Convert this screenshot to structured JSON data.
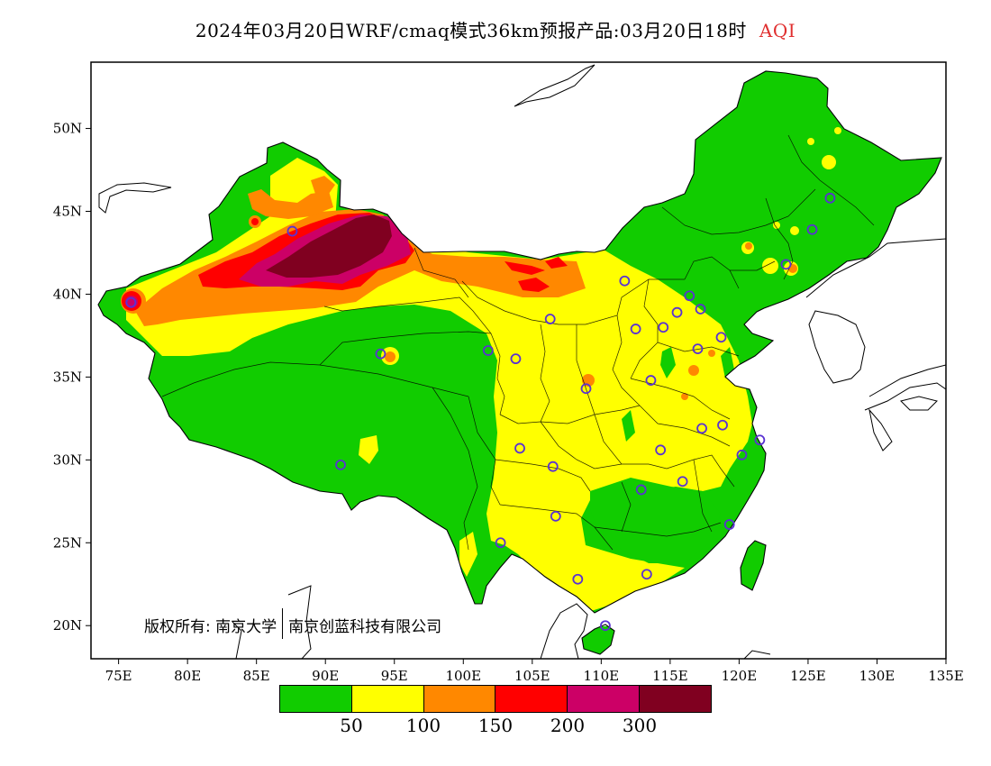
{
  "title": {
    "main": "2024年03月20日WRF/cmaq模式36km预报产品:03月20日18时",
    "variable": "AQI",
    "variable_color": "#e03030"
  },
  "map": {
    "lon_range": [
      73,
      135
    ],
    "lat_range": [
      18,
      54
    ],
    "lon_ticks": [
      "75E",
      "80E",
      "85E",
      "90E",
      "95E",
      "100E",
      "105E",
      "110E",
      "115E",
      "120E",
      "125E",
      "130E",
      "135E"
    ],
    "lat_ticks": [
      "20N",
      "25N",
      "30N",
      "35N",
      "40N",
      "45N",
      "50N"
    ],
    "background": "#ffffff",
    "station_marker_color": "#5a32d2",
    "highest_level_regions": [
      "Tarim Basin (southern Xinjiang)",
      "eastern Xinjiang / western Inner Mongolia"
    ],
    "stations": [
      [
        75.9,
        39.5
      ],
      [
        87.6,
        43.8
      ],
      [
        91.1,
        29.7
      ],
      [
        94.0,
        36.4
      ],
      [
        101.8,
        36.6
      ],
      [
        103.8,
        36.1
      ],
      [
        106.3,
        38.5
      ],
      [
        108.9,
        34.3
      ],
      [
        111.7,
        40.8
      ],
      [
        112.5,
        37.9
      ],
      [
        114.5,
        38.0
      ],
      [
        116.4,
        39.9
      ],
      [
        117.2,
        39.1
      ],
      [
        113.6,
        34.8
      ],
      [
        117.0,
        36.7
      ],
      [
        104.1,
        30.7
      ],
      [
        106.5,
        29.6
      ],
      [
        106.7,
        26.6
      ],
      [
        102.7,
        25.0
      ],
      [
        108.3,
        22.8
      ],
      [
        113.3,
        23.1
      ],
      [
        110.3,
        20.0
      ],
      [
        112.9,
        28.2
      ],
      [
        114.3,
        30.6
      ],
      [
        115.9,
        28.7
      ],
      [
        117.3,
        31.9
      ],
      [
        118.8,
        32.1
      ],
      [
        120.2,
        30.3
      ],
      [
        121.5,
        31.2
      ],
      [
        119.3,
        26.1
      ],
      [
        123.4,
        41.8
      ],
      [
        125.3,
        43.9
      ],
      [
        126.6,
        45.8
      ],
      [
        118.7,
        37.4
      ],
      [
        115.5,
        38.9
      ]
    ]
  },
  "legend": {
    "colors": [
      "#11cc00",
      "#ffff00",
      "#ff8800",
      "#ff0000",
      "#cc0066",
      "#800020"
    ],
    "labels": [
      "50",
      "100",
      "150",
      "200",
      "300"
    ],
    "categories": [
      "0-50",
      "50-100",
      "100-150",
      "150-200",
      "200-300",
      ">300"
    ]
  },
  "copyright": {
    "prefix": "版权所有:",
    "org1": "南京大学",
    "org2": "南京创蓝科技有限公司"
  }
}
